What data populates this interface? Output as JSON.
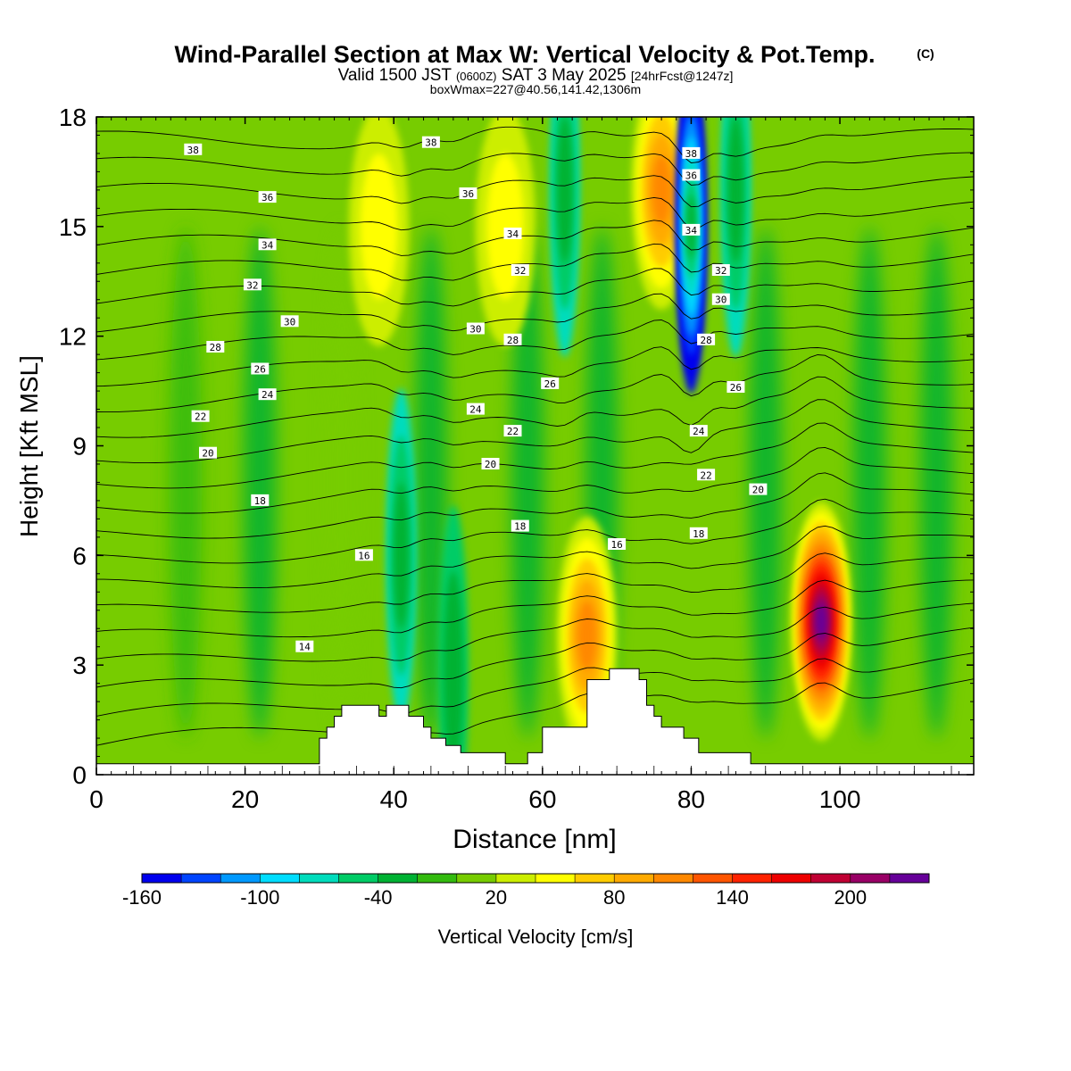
{
  "title": {
    "main": "Wind-Parallel Section at Max W: Vertical Velocity & Pot.Temp.",
    "copyright": "(C)",
    "valid_prefix": "Valid 1500 JST",
    "valid_utc": "(0600Z)",
    "valid_date": "SAT 3 May 2025",
    "forecast": "[24hrFcst@1247z]",
    "boxwmax": "boxWmax=227@40.56,141.42,1306m"
  },
  "colorbar": {
    "label": "Vertical Velocity [cm/s]",
    "tick_labels": [
      "-160",
      "-100",
      "-40",
      "20",
      "80",
      "140",
      "200"
    ],
    "levels_cms": [
      -160,
      -140,
      -120,
      -100,
      -80,
      -60,
      -40,
      -20,
      0,
      20,
      40,
      60,
      80,
      100,
      120,
      140,
      160,
      180,
      200,
      220
    ],
    "colors": [
      "#0000ee",
      "#0044ff",
      "#0099ff",
      "#00ddff",
      "#00dcbc",
      "#00cc66",
      "#00b233",
      "#33bb0f",
      "#77cc00",
      "#ccee00",
      "#ffff00",
      "#ffcc00",
      "#ffaa00",
      "#ff8800",
      "#ff5500",
      "#ff2200",
      "#ee0000",
      "#c00033",
      "#990066",
      "#660099"
    ]
  },
  "chart_data": {
    "type": "heatmap",
    "xlabel": "Distance [nm]",
    "ylabel": "Height [Kft MSL]",
    "xlim": [
      0,
      118
    ],
    "ylim": [
      0,
      18
    ],
    "xticks": [
      0,
      20,
      40,
      60,
      80,
      100
    ],
    "yticks": [
      0,
      3,
      6,
      9,
      12,
      15,
      18
    ],
    "color_field": "Vertical Velocity [cm/s]",
    "contour_field": "Potential Temperature",
    "terrain_kft": [
      [
        0,
        0.3
      ],
      [
        30,
        0.3
      ],
      [
        30,
        1
      ],
      [
        31,
        1
      ],
      [
        31,
        1.3
      ],
      [
        32,
        1.3
      ],
      [
        32,
        1.6
      ],
      [
        33,
        1.6
      ],
      [
        33,
        1.9
      ],
      [
        38,
        1.9
      ],
      [
        38,
        1.6
      ],
      [
        39,
        1.6
      ],
      [
        39,
        1.9
      ],
      [
        42,
        1.9
      ],
      [
        42,
        1.6
      ],
      [
        44,
        1.6
      ],
      [
        44,
        1.3
      ],
      [
        45,
        1.3
      ],
      [
        45,
        1
      ],
      [
        47,
        1
      ],
      [
        47,
        0.8
      ],
      [
        49,
        0.8
      ],
      [
        49,
        0.6
      ],
      [
        55,
        0.6
      ],
      [
        55,
        0.3
      ],
      [
        58,
        0.3
      ],
      [
        58,
        0.6
      ],
      [
        60,
        0.6
      ],
      [
        60,
        1.3
      ],
      [
        66,
        1.3
      ],
      [
        66,
        2.6
      ],
      [
        69,
        2.6
      ],
      [
        69,
        2.9
      ],
      [
        73,
        2.9
      ],
      [
        73,
        2.6
      ],
      [
        74,
        2.6
      ],
      [
        74,
        1.9
      ],
      [
        75,
        1.9
      ],
      [
        75,
        1.6
      ],
      [
        76,
        1.6
      ],
      [
        76,
        1.3
      ],
      [
        79,
        1.3
      ],
      [
        79,
        1
      ],
      [
        81,
        1
      ],
      [
        81,
        0.6
      ],
      [
        88,
        0.6
      ],
      [
        88,
        0.3
      ],
      [
        118,
        0.3
      ]
    ],
    "updrafts_cms": [
      {
        "x": 97.5,
        "z": 4.2,
        "w": 227
      },
      {
        "x": 76,
        "z": 16,
        "w": 115
      },
      {
        "x": 66,
        "z": 3.8,
        "w": 105
      },
      {
        "x": 38,
        "z": 15,
        "w": 45
      },
      {
        "x": 55,
        "z": 15,
        "w": 40
      }
    ],
    "downdrafts_cms": [
      {
        "x": 80,
        "z": 15,
        "w": -165
      },
      {
        "x": 86,
        "z": 16,
        "w": -70
      },
      {
        "x": 63,
        "z": 16,
        "w": -60
      },
      {
        "x": 41,
        "z": 6,
        "w": -60
      },
      {
        "x": 48,
        "z": 2.8,
        "w": -50
      }
    ],
    "isotherm_labels": [
      {
        "label": "38",
        "x": 13,
        "z": 17.1
      },
      {
        "label": "36",
        "x": 23,
        "z": 15.8
      },
      {
        "label": "34",
        "x": 23,
        "z": 14.5
      },
      {
        "label": "32",
        "x": 21,
        "z": 13.4
      },
      {
        "label": "30",
        "x": 26,
        "z": 12.4
      },
      {
        "label": "28",
        "x": 16,
        "z": 11.7
      },
      {
        "label": "26",
        "x": 22,
        "z": 11.1
      },
      {
        "label": "24",
        "x": 23,
        "z": 10.4
      },
      {
        "label": "22",
        "x": 14,
        "z": 9.8
      },
      {
        "label": "20",
        "x": 15,
        "z": 8.8
      },
      {
        "label": "18",
        "x": 22,
        "z": 7.5
      },
      {
        "label": "16",
        "x": 36,
        "z": 6.0
      },
      {
        "label": "14",
        "x": 28,
        "z": 3.5
      },
      {
        "label": "38",
        "x": 45,
        "z": 17.3
      },
      {
        "label": "36",
        "x": 50,
        "z": 15.9
      },
      {
        "label": "34",
        "x": 56,
        "z": 14.8
      },
      {
        "label": "32",
        "x": 57,
        "z": 13.8
      },
      {
        "label": "30",
        "x": 51,
        "z": 12.2
      },
      {
        "label": "28",
        "x": 56,
        "z": 11.9
      },
      {
        "label": "26",
        "x": 61,
        "z": 10.7
      },
      {
        "label": "24",
        "x": 51,
        "z": 10
      },
      {
        "label": "22",
        "x": 56,
        "z": 9.4
      },
      {
        "label": "20",
        "x": 53,
        "z": 8.5
      },
      {
        "label": "18",
        "x": 57,
        "z": 6.8
      },
      {
        "label": "16",
        "x": 70,
        "z": 6.3
      },
      {
        "label": "38",
        "x": 80,
        "z": 17
      },
      {
        "label": "36",
        "x": 80,
        "z": 16.4
      },
      {
        "label": "34",
        "x": 80,
        "z": 14.9
      },
      {
        "label": "32",
        "x": 84,
        "z": 13.8
      },
      {
        "label": "30",
        "x": 84,
        "z": 13.0
      },
      {
        "label": "28",
        "x": 82,
        "z": 11.9
      },
      {
        "label": "26",
        "x": 86,
        "z": 10.6
      },
      {
        "label": "24",
        "x": 81,
        "z": 9.4
      },
      {
        "label": "22",
        "x": 82,
        "z": 8.2
      },
      {
        "label": "20",
        "x": 89,
        "z": 7.8
      },
      {
        "label": "18",
        "x": 81,
        "z": 6.6
      }
    ]
  }
}
